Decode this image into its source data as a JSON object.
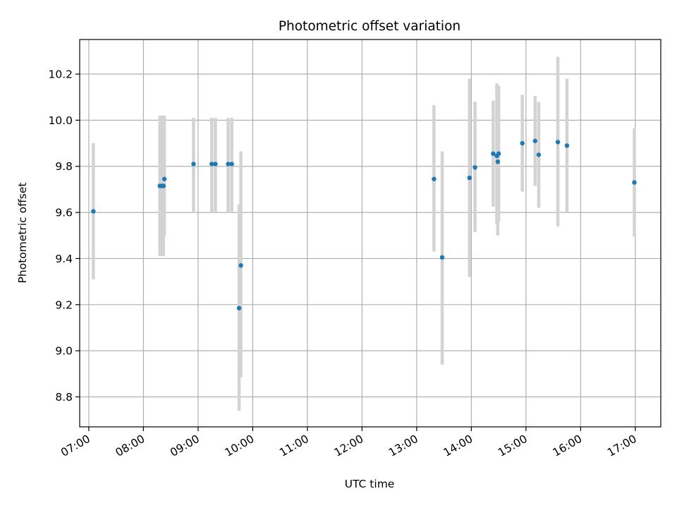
{
  "chart_data": {
    "type": "scatter",
    "title": "Photometric offset variation",
    "xlabel": "UTC time",
    "ylabel": "Photometric offset",
    "x_axis_type": "time",
    "xlim": [
      "06:50",
      "17:28"
    ],
    "ylim": [
      8.67,
      10.35
    ],
    "x_ticks": [
      "07:00",
      "08:00",
      "09:00",
      "10:00",
      "11:00",
      "12:00",
      "13:00",
      "14:00",
      "15:00",
      "16:00",
      "17:00"
    ],
    "y_ticks": [
      "8.8",
      "9.0",
      "9.2",
      "9.4",
      "9.6",
      "9.8",
      "10.0",
      "10.2"
    ],
    "grid": true,
    "legend": "none",
    "colors": {
      "point": "#1f77b4",
      "error_bar": "#d3d3d3",
      "grid": "#b0b0b0"
    },
    "points": [
      {
        "x": "07:05",
        "y": 9.605,
        "ylow": 9.31,
        "yhigh": 9.9
      },
      {
        "x": "08:18",
        "y": 9.715,
        "ylow": 9.41,
        "yhigh": 10.02
      },
      {
        "x": "08:20",
        "y": 9.715,
        "ylow": 9.41,
        "yhigh": 10.02
      },
      {
        "x": "08:22",
        "y": 9.715,
        "ylow": 9.41,
        "yhigh": 10.02
      },
      {
        "x": "08:23",
        "y": 9.745,
        "ylow": 9.5,
        "yhigh": 10.02
      },
      {
        "x": "08:55",
        "y": 9.81,
        "ylow": 9.6,
        "yhigh": 10.01
      },
      {
        "x": "09:15",
        "y": 9.81,
        "ylow": 9.6,
        "yhigh": 10.01
      },
      {
        "x": "09:19",
        "y": 9.81,
        "ylow": 9.6,
        "yhigh": 10.01
      },
      {
        "x": "09:33",
        "y": 9.81,
        "ylow": 9.6,
        "yhigh": 10.01
      },
      {
        "x": "09:37",
        "y": 9.81,
        "ylow": 9.6,
        "yhigh": 10.01
      },
      {
        "x": "09:45",
        "y": 9.185,
        "ylow": 8.74,
        "yhigh": 9.635
      },
      {
        "x": "09:47",
        "y": 9.37,
        "ylow": 8.885,
        "yhigh": 9.865
      },
      {
        "x": "13:19",
        "y": 9.745,
        "ylow": 9.43,
        "yhigh": 10.065
      },
      {
        "x": "13:28",
        "y": 9.405,
        "ylow": 8.94,
        "yhigh": 9.865
      },
      {
        "x": "13:58",
        "y": 9.75,
        "ylow": 9.32,
        "yhigh": 10.18
      },
      {
        "x": "14:04",
        "y": 9.795,
        "ylow": 9.515,
        "yhigh": 10.08
      },
      {
        "x": "14:24",
        "y": 9.855,
        "ylow": 9.625,
        "yhigh": 10.085
      },
      {
        "x": "14:28",
        "y": 9.845,
        "ylow": 9.55,
        "yhigh": 10.16
      },
      {
        "x": "14:29",
        "y": 9.82,
        "ylow": 9.5,
        "yhigh": 10.14
      },
      {
        "x": "14:30",
        "y": 9.855,
        "ylow": 9.56,
        "yhigh": 10.15
      },
      {
        "x": "14:56",
        "y": 9.9,
        "ylow": 9.69,
        "yhigh": 10.11
      },
      {
        "x": "15:10",
        "y": 9.91,
        "ylow": 9.715,
        "yhigh": 10.105
      },
      {
        "x": "15:14",
        "y": 9.85,
        "ylow": 9.62,
        "yhigh": 10.08
      },
      {
        "x": "15:35",
        "y": 9.905,
        "ylow": 9.54,
        "yhigh": 10.275
      },
      {
        "x": "15:45",
        "y": 9.89,
        "ylow": 9.6,
        "yhigh": 10.18
      },
      {
        "x": "16:59",
        "y": 9.73,
        "ylow": 9.495,
        "yhigh": 9.965
      }
    ]
  }
}
